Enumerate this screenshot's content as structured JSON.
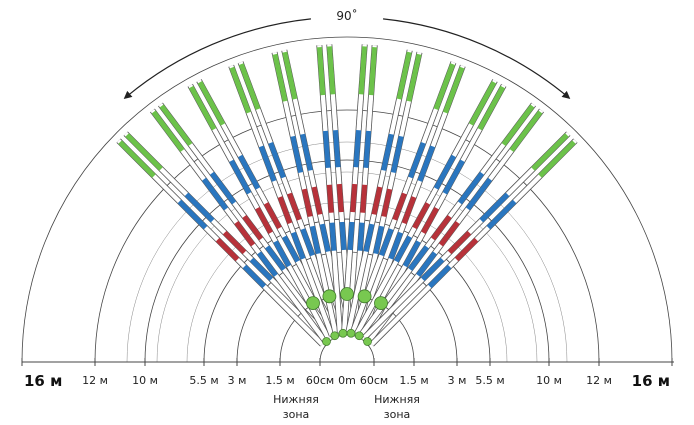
{
  "angle_label": "90˚",
  "distance_labels": [
    {
      "text": "16 м",
      "r": 16,
      "side": "left",
      "big": true
    },
    {
      "text": "12 м",
      "r": 12,
      "side": "left"
    },
    {
      "text": "10 м",
      "r": 10,
      "side": "left"
    },
    {
      "text": "5.5 м",
      "r": 5.5,
      "side": "left"
    },
    {
      "text": "3 м",
      "r": 3,
      "side": "left"
    },
    {
      "text": "1.5 м",
      "r": 1.5,
      "side": "left"
    },
    {
      "text": "60см",
      "r": 0.6,
      "side": "left"
    },
    {
      "text": "0m",
      "r": 0,
      "side": "center"
    },
    {
      "text": "60см",
      "r": 0.6,
      "side": "right"
    },
    {
      "text": "1.5 м",
      "r": 1.5,
      "side": "right"
    },
    {
      "text": "3 м",
      "r": 3,
      "side": "right"
    },
    {
      "text": "5.5 м",
      "r": 5.5,
      "side": "right"
    },
    {
      "text": "10 м",
      "r": 10,
      "side": "right"
    },
    {
      "text": "12 м",
      "r": 12,
      "side": "right"
    },
    {
      "text": "16 м",
      "r": 16,
      "side": "right",
      "big": true
    }
  ],
  "lower_zone_labels": [
    {
      "line1": "Нижняя",
      "line2": "зона",
      "side": "left"
    },
    {
      "line1": "Нижняя",
      "line2": "зона",
      "side": "right"
    }
  ],
  "colors": {
    "green": "#6cc24a",
    "blue": "#2a76bf",
    "red": "#b7323a",
    "line": "#444444",
    "dot_green": "#78c850"
  }
}
